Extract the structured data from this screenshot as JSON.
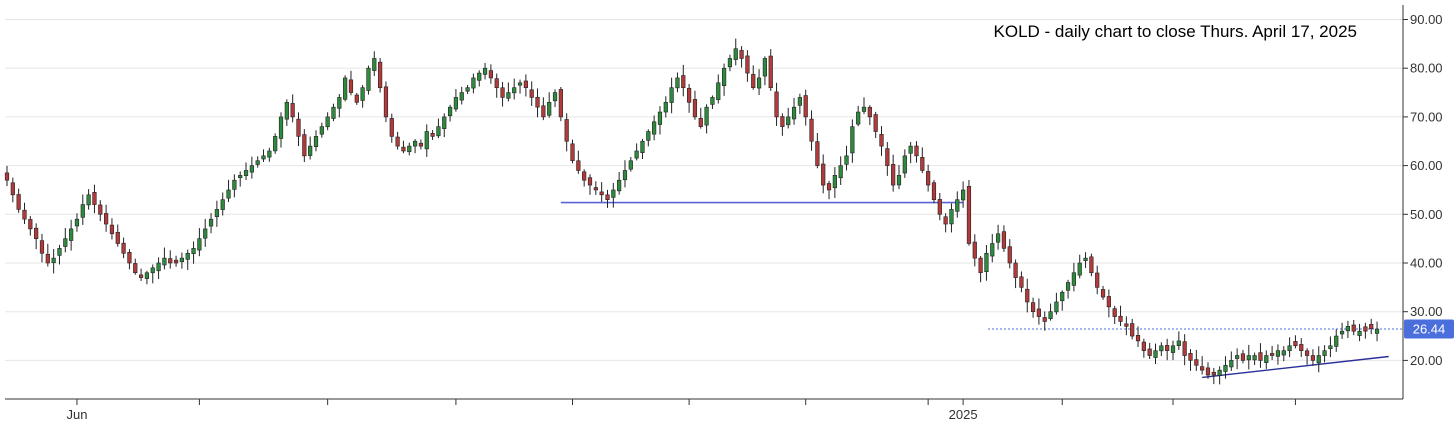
{
  "chart_data": {
    "type": "candlestick",
    "title": "KOLD - daily chart to close Thurs. April 17, 2025",
    "ylim": [
      10,
      92
    ],
    "y_ticks": [
      "20.00",
      "30.00",
      "40.00",
      "50.00",
      "60.00",
      "70.00",
      "80.00",
      "90.00"
    ],
    "x_tick_labels": [
      {
        "label": "Jun",
        "index": 12
      },
      {
        "label": "2025",
        "index": 164
      }
    ],
    "x_ticks_at_index": [
      12,
      33,
      55,
      77,
      97,
      117,
      137,
      158,
      164,
      181,
      200,
      221
    ],
    "last_price": {
      "value": 26.44,
      "label": "26.44",
      "color": "#4a6fdc"
    },
    "support_lines": [
      {
        "from": {
          "index": 95,
          "price": 52.4
        },
        "to": {
          "index": 164,
          "price": 52.4
        },
        "color": "#5a63d8"
      }
    ],
    "trendlines": [
      {
        "from": {
          "index": 205,
          "price": 16.5
        },
        "to": {
          "index": 237,
          "price": 20.8
        },
        "color": "#2a2f9a"
      }
    ],
    "colors": {
      "up": "#2e8b3e",
      "down": "#b23a3a",
      "grid": "#e6e6e6"
    },
    "closes": [
      57,
      54,
      51,
      49,
      47,
      45,
      42,
      40,
      41,
      43,
      45,
      47,
      49,
      52,
      54,
      52,
      50,
      48,
      46,
      44,
      42,
      40,
      38,
      37,
      38,
      39,
      40,
      41,
      40,
      40,
      41,
      42,
      43,
      45,
      47,
      49,
      51,
      53,
      55,
      57,
      58,
      59,
      60,
      61,
      62,
      63,
      66,
      70,
      73,
      70,
      66,
      62,
      64,
      66,
      68,
      70,
      72,
      74,
      78,
      75,
      73,
      76,
      80,
      82,
      76,
      70,
      66,
      64,
      63,
      64,
      65,
      64,
      67,
      66,
      68,
      70,
      72,
      74,
      75,
      76,
      78,
      79,
      80,
      78,
      76,
      74,
      75,
      76,
      77,
      76,
      74,
      72,
      70,
      73,
      75,
      70,
      65,
      61,
      59,
      57,
      56,
      55,
      54,
      53,
      55,
      57,
      59,
      61,
      63,
      65,
      67,
      69,
      71,
      73,
      76,
      78,
      76,
      73,
      70,
      68,
      72,
      74,
      77,
      80,
      82,
      84,
      82,
      79,
      76,
      78,
      82,
      76,
      70,
      68,
      70,
      72,
      74,
      70,
      65,
      60,
      56,
      55,
      58,
      60,
      62,
      68,
      71,
      72,
      70,
      67,
      64,
      60,
      56,
      58,
      62,
      64,
      62,
      59,
      56,
      53,
      50,
      48,
      51,
      53,
      55,
      44,
      41,
      38,
      42,
      44,
      46,
      43,
      40,
      37,
      35,
      32,
      30,
      29,
      28,
      30,
      32,
      34,
      36,
      38,
      40,
      41,
      38,
      35,
      33,
      31,
      29,
      28,
      27,
      25,
      24,
      22,
      21,
      22,
      23,
      22,
      23,
      24,
      21,
      20,
      19,
      18,
      17,
      17,
      18,
      19,
      20,
      21,
      20,
      21,
      21,
      20,
      21,
      21,
      22,
      22,
      23,
      23,
      22,
      21,
      20,
      21,
      22,
      23,
      25,
      26,
      27,
      26,
      26,
      26,
      26.5,
      26.44
    ]
  }
}
